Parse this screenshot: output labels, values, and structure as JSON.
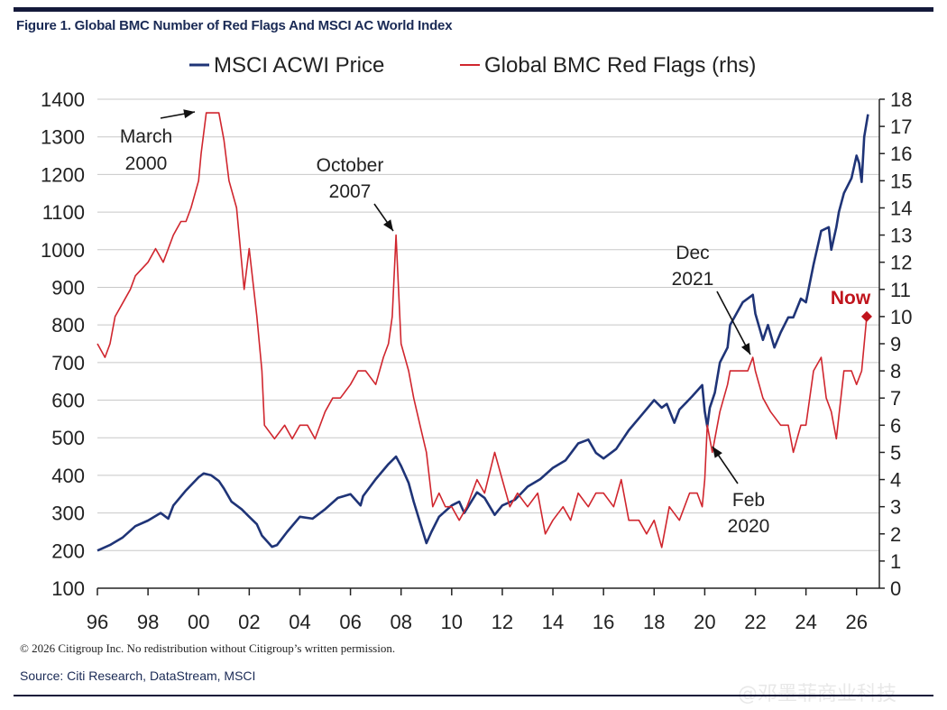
{
  "figure": {
    "title": "Figure 1. Global BMC Number of Red Flags And MSCI AC World Index",
    "copyright": "© 2026 Citigroup Inc. No redistribution without Citigroup’s written permission.",
    "source": "Source: Citi Research, DataStream, MSCI",
    "watermark": "@邓墨菲商业科技"
  },
  "chart_data": {
    "type": "line",
    "title": "",
    "xlabel": "",
    "ylabel": "",
    "x_ticks": [
      "96",
      "98",
      "00",
      "02",
      "04",
      "06",
      "08",
      "10",
      "12",
      "14",
      "16",
      "18",
      "20",
      "22",
      "24",
      "26"
    ],
    "xlim": [
      1996,
      2026.9
    ],
    "y_left_ticks": [
      "100",
      "200",
      "300",
      "400",
      "500",
      "600",
      "700",
      "800",
      "900",
      "1000",
      "1100",
      "1200",
      "1300",
      "1400"
    ],
    "ylim_left": [
      100,
      1400
    ],
    "y_right_ticks": [
      "0",
      "1",
      "2",
      "3",
      "4",
      "5",
      "6",
      "7",
      "8",
      "9",
      "10",
      "11",
      "12",
      "13",
      "14",
      "15",
      "16",
      "17",
      "18"
    ],
    "ylim_right": [
      0,
      18
    ],
    "grid": "horizontal",
    "legend_position": "top",
    "series": [
      {
        "name": "MSCI ACWI Price",
        "axis": "left",
        "color": "#1f3477",
        "x": [
          1996.0,
          1996.5,
          1997.0,
          1997.5,
          1998.0,
          1998.5,
          1998.8,
          1999.0,
          1999.5,
          2000.0,
          2000.2,
          2000.5,
          2000.8,
          2001.0,
          2001.3,
          2001.7,
          2002.0,
          2002.3,
          2002.5,
          2002.7,
          2002.9,
          2003.1,
          2003.5,
          2004.0,
          2004.5,
          2005.0,
          2005.5,
          2006.0,
          2006.4,
          2006.5,
          2007.0,
          2007.5,
          2007.8,
          2008.0,
          2008.3,
          2008.5,
          2008.75,
          2009.0,
          2009.2,
          2009.5,
          2010.0,
          2010.3,
          2010.5,
          2011.0,
          2011.3,
          2011.7,
          2012.0,
          2012.5,
          2013.0,
          2013.5,
          2014.0,
          2014.5,
          2015.0,
          2015.4,
          2015.7,
          2016.0,
          2016.5,
          2017.0,
          2017.5,
          2018.0,
          2018.3,
          2018.5,
          2018.8,
          2019.0,
          2019.5,
          2019.9,
          2020.0,
          2020.1,
          2020.2,
          2020.4,
          2020.6,
          2020.9,
          2021.0,
          2021.5,
          2021.9,
          2022.0,
          2022.3,
          2022.5,
          2022.75,
          2023.0,
          2023.3,
          2023.5,
          2023.8,
          2024.0,
          2024.3,
          2024.6,
          2024.9,
          2025.0,
          2025.2,
          2025.3,
          2025.5,
          2025.8,
          2026.0,
          2026.1,
          2026.2,
          2026.3,
          2026.45
        ],
        "values": [
          200,
          215,
          235,
          265,
          280,
          300,
          285,
          320,
          360,
          395,
          405,
          400,
          385,
          365,
          330,
          310,
          290,
          270,
          240,
          225,
          210,
          215,
          250,
          290,
          285,
          310,
          340,
          350,
          320,
          345,
          390,
          430,
          450,
          425,
          380,
          330,
          275,
          220,
          250,
          290,
          320,
          330,
          300,
          355,
          340,
          295,
          320,
          335,
          370,
          390,
          420,
          440,
          485,
          495,
          460,
          445,
          470,
          520,
          560,
          600,
          580,
          590,
          540,
          575,
          610,
          640,
          570,
          530,
          580,
          620,
          700,
          740,
          800,
          860,
          880,
          830,
          760,
          800,
          740,
          780,
          820,
          820,
          870,
          860,
          960,
          1050,
          1060,
          1000,
          1060,
          1100,
          1150,
          1190,
          1250,
          1230,
          1180,
          1300,
          1360
        ]
      },
      {
        "name": "Global BMC Red Flags (rhs)",
        "axis": "right",
        "color": "#d0262e",
        "x": [
          1996.0,
          1996.3,
          1996.5,
          1996.7,
          1997.0,
          1997.3,
          1997.5,
          1998.0,
          1998.3,
          1998.6,
          1999.0,
          1999.3,
          1999.5,
          1999.7,
          2000.0,
          2000.1,
          2000.3,
          2000.5,
          2000.8,
          2001.0,
          2001.2,
          2001.5,
          2001.8,
          2002.0,
          2002.3,
          2002.5,
          2002.6,
          2003.0,
          2003.4,
          2003.7,
          2004.0,
          2004.3,
          2004.6,
          2005.0,
          2005.3,
          2005.6,
          2006.0,
          2006.3,
          2006.6,
          2007.0,
          2007.3,
          2007.5,
          2007.65,
          2007.8,
          2008.0,
          2008.3,
          2008.5,
          2008.75,
          2009.0,
          2009.25,
          2009.5,
          2009.75,
          2010.0,
          2010.3,
          2010.6,
          2011.0,
          2011.3,
          2011.7,
          2012.0,
          2012.3,
          2012.6,
          2013.0,
          2013.4,
          2013.7,
          2014.0,
          2014.4,
          2014.7,
          2015.0,
          2015.4,
          2015.7,
          2016.0,
          2016.4,
          2016.7,
          2017.0,
          2017.4,
          2017.7,
          2018.0,
          2018.3,
          2018.6,
          2019.0,
          2019.4,
          2019.7,
          2019.9,
          2020.0,
          2020.1,
          2020.3,
          2020.6,
          2020.9,
          2021.0,
          2021.4,
          2021.7,
          2021.9,
          2022.0,
          2022.3,
          2022.6,
          2023.0,
          2023.3,
          2023.5,
          2023.8,
          2024.0,
          2024.3,
          2024.6,
          2024.8,
          2025.0,
          2025.2,
          2025.5,
          2025.8,
          2026.0,
          2026.2,
          2026.4
        ],
        "values": [
          9,
          8.5,
          9,
          10,
          10.5,
          11,
          11.5,
          12,
          12.5,
          12,
          13,
          13.5,
          13.5,
          14,
          15,
          16,
          17.5,
          17.5,
          17.5,
          16.5,
          15,
          14,
          11,
          12.5,
          10,
          8,
          6,
          5.5,
          6,
          5.5,
          6,
          6,
          5.5,
          6.5,
          7,
          7,
          7.5,
          8,
          8,
          7.5,
          8.5,
          9,
          10,
          13,
          9,
          8,
          7,
          6,
          5,
          3,
          3.5,
          3,
          3,
          2.5,
          3,
          4,
          3.5,
          5,
          4,
          3,
          3.5,
          3,
          3.5,
          2,
          2.5,
          3,
          2.5,
          3.5,
          3,
          3.5,
          3.5,
          3,
          4,
          2.5,
          2.5,
          2,
          2.5,
          1.5,
          3,
          2.5,
          3.5,
          3.5,
          3,
          4,
          6,
          5,
          6.5,
          7.5,
          8,
          8,
          8,
          8.5,
          8,
          7,
          6.5,
          6,
          6,
          5,
          6,
          6,
          8,
          8.5,
          7,
          6.5,
          5.5,
          8,
          8,
          7.5,
          8,
          10
        ]
      }
    ],
    "annotations": [
      {
        "text_lines": [
          "March",
          "2000"
        ],
        "x": 2000.6,
        "y_right": 17.5
      },
      {
        "text_lines": [
          "October",
          "2007"
        ],
        "x": 2007.75,
        "y_right": 13
      },
      {
        "text_lines": [
          "Dec",
          "2021"
        ],
        "x": 2021.9,
        "y_right": 8.5
      },
      {
        "text_lines": [
          "Feb",
          "2020"
        ],
        "x": 2020.1,
        "y_right": 5
      },
      {
        "text_lines": [
          "Now"
        ],
        "x": 2026.4,
        "y_right": 10
      }
    ]
  }
}
